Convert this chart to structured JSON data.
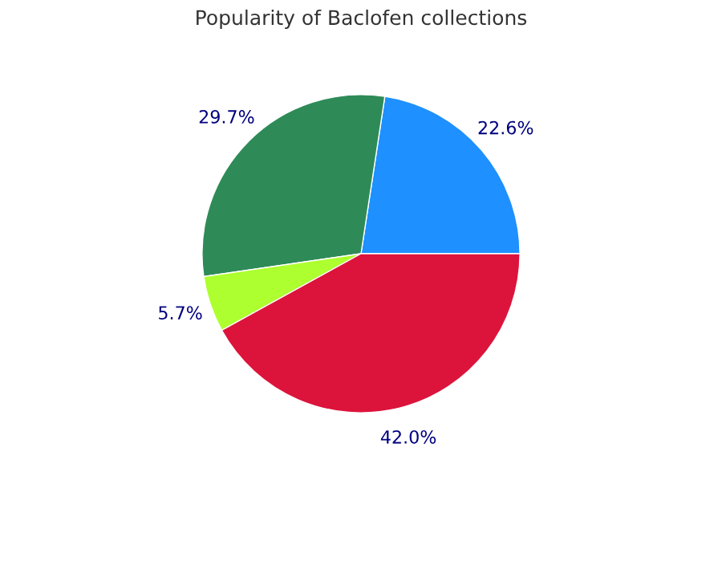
{
  "chart_data": {
    "type": "pie",
    "title": "Popularity of Baclofen collections",
    "categories": [
      null,
      null,
      null,
      null
    ],
    "values": [
      22.6,
      29.7,
      5.7,
      42.0
    ],
    "colors": [
      "#1e90ff",
      "#2e8b57",
      "#adff2f",
      "#dc143c"
    ],
    "value_labels": [
      "22.6%",
      "29.7%",
      "5.7%",
      "42.0%"
    ]
  }
}
